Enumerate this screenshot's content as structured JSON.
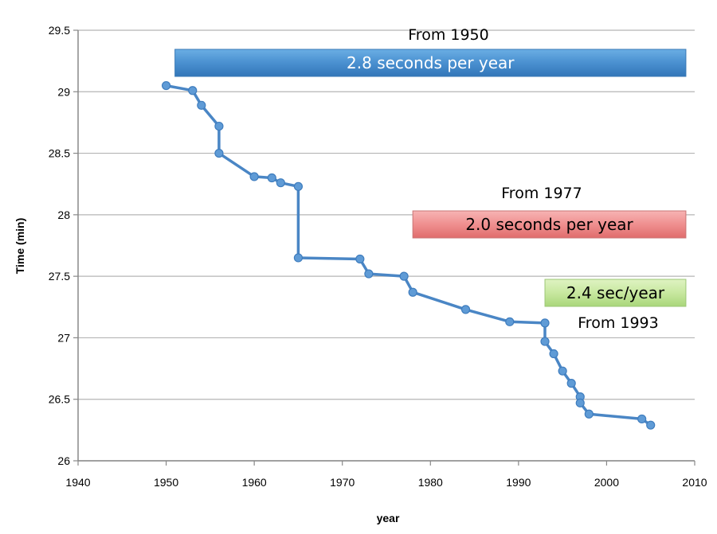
{
  "chart_data": {
    "type": "line",
    "title": "",
    "xlabel": "year",
    "ylabel": "Time (min)",
    "xlim": [
      1940,
      2010
    ],
    "ylim": [
      26,
      29.5
    ],
    "xticks": [
      1940,
      1950,
      1960,
      1970,
      1980,
      1990,
      2000,
      2010
    ],
    "yticks": [
      26,
      26.5,
      27,
      27.5,
      28,
      28.5,
      29,
      29.5
    ],
    "ytick_labels": [
      "26",
      "26.5",
      "27",
      "27.5",
      "28",
      "28.5",
      "29",
      "29.5"
    ],
    "grid": "horizontal",
    "series": [
      {
        "color": "#4a86c5",
        "points": [
          [
            1950,
            29.05
          ],
          [
            1953,
            29.01
          ],
          [
            1954,
            28.89
          ],
          [
            1956,
            28.72
          ],
          [
            1956,
            28.5
          ],
          [
            1960,
            28.31
          ],
          [
            1962,
            28.3
          ],
          [
            1963,
            28.26
          ],
          [
            1965,
            28.23
          ],
          [
            1965,
            27.65
          ],
          [
            1972,
            27.64
          ],
          [
            1973,
            27.52
          ],
          [
            1977,
            27.5
          ],
          [
            1978,
            27.37
          ],
          [
            1984,
            27.23
          ],
          [
            1989,
            27.13
          ],
          [
            1993,
            27.12
          ],
          [
            1993,
            26.97
          ],
          [
            1994,
            26.87
          ],
          [
            1995,
            26.73
          ],
          [
            1996,
            26.63
          ],
          [
            1997,
            26.52
          ],
          [
            1997,
            26.47
          ],
          [
            1998,
            26.38
          ],
          [
            2004,
            26.34
          ],
          [
            2005,
            26.29
          ]
        ]
      }
    ],
    "annotations": [
      {
        "heading": "From 1950",
        "text": "2.8 seconds per year",
        "range": [
          1951,
          2009
        ],
        "fill": "#4a90d0",
        "text_color": "#ffffff"
      },
      {
        "heading": "From 1977",
        "text": "2.0 seconds per year",
        "range": [
          1978,
          2009
        ],
        "fill": "#ef8c8c",
        "text_color": "#000000"
      },
      {
        "heading": "From 1993",
        "text": "2.4 sec/year",
        "range": [
          1993,
          2009
        ],
        "fill": "#c8e6a0",
        "text_color": "#000000"
      }
    ]
  }
}
